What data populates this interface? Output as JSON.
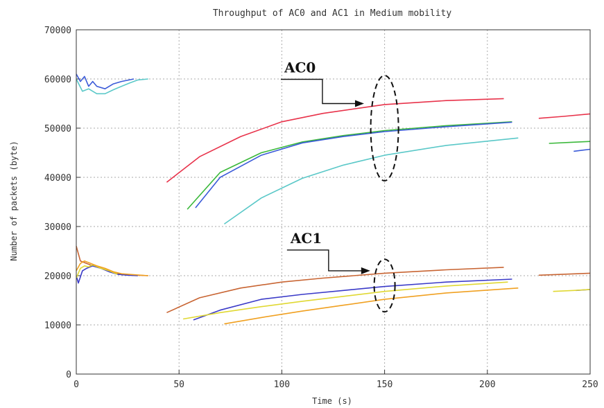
{
  "chart_data": {
    "type": "line",
    "title": "Throughput of AC0 and AC1 in Medium mobility",
    "xlabel": "Time (s)",
    "ylabel": "Number of packets (byte)",
    "xlim": [
      0,
      250
    ],
    "ylim": [
      0,
      70000
    ],
    "xticks": [
      0,
      50,
      100,
      150,
      200,
      250
    ],
    "xtick_labels": [
      "0",
      "50",
      "100",
      "150",
      "200",
      "250"
    ],
    "yticks": [
      0,
      10000,
      20000,
      30000,
      40000,
      50000,
      60000,
      70000
    ],
    "ytick_labels": [
      "0",
      "10000",
      "20000",
      "30000",
      "40000",
      "50000",
      "60000",
      "70000"
    ],
    "grid": true,
    "annotations": [
      {
        "text": "AC0",
        "arrow_to": [
          140,
          55000
        ],
        "ellipse_center": [
          150,
          50000
        ]
      },
      {
        "text": "AC1",
        "arrow_to": [
          143,
          21000
        ],
        "ellipse_center": [
          150,
          18000
        ]
      }
    ],
    "series": [
      {
        "group": "AC0",
        "color": "#e8324a",
        "segments": [
          {
            "x": [
              44,
              60,
              80,
              100,
              120,
              150,
              180,
              208
            ],
            "y": [
              39000,
              44200,
              48300,
              51300,
              53000,
              54800,
              55600,
              56000
            ]
          },
          {
            "x": [
              225,
              237,
              250
            ],
            "y": [
              52000,
              52400,
              52900
            ]
          }
        ]
      },
      {
        "group": "AC0",
        "color": "#3ab83a",
        "segments": [
          {
            "x": [
              54,
              70,
              90,
              110,
              130,
              150,
              180,
              212
            ],
            "y": [
              33500,
              41000,
              45000,
              47200,
              48500,
              49500,
              50500,
              51300
            ]
          },
          {
            "x": [
              230,
              240,
              250
            ],
            "y": [
              46900,
              47100,
              47300
            ]
          }
        ]
      },
      {
        "group": "AC0",
        "color": "#3a5ad8",
        "segments": [
          {
            "x": [
              0,
              2,
              4,
              6,
              8,
              10,
              14,
              18,
              22,
              28
            ],
            "y": [
              61000,
              59500,
              60500,
              58500,
              59500,
              58500,
              58000,
              59000,
              59500,
              60000
            ]
          },
          {
            "x": [
              58,
              70,
              90,
              110,
              130,
              150,
              180,
              212
            ],
            "y": [
              33800,
              40000,
              44500,
              47000,
              48300,
              49300,
              50300,
              51200
            ]
          },
          {
            "x": [
              242,
              246,
              250
            ],
            "y": [
              45300,
              45500,
              45700
            ]
          }
        ]
      },
      {
        "group": "AC0",
        "color": "#5ac8c8",
        "segments": [
          {
            "x": [
              0,
              3,
              6,
              10,
              14,
              18,
              22,
              26,
              30,
              35
            ],
            "y": [
              60000,
              57500,
              58000,
              57000,
              57000,
              57800,
              58500,
              59200,
              59800,
              60000
            ]
          },
          {
            "x": [
              72,
              90,
              110,
              130,
              150,
              180,
              215
            ],
            "y": [
              30500,
              35800,
              39800,
              42500,
              44500,
              46500,
              48000
            ]
          }
        ]
      },
      {
        "group": "AC1",
        "color": "#c86432",
        "segments": [
          {
            "x": [
              0,
              2,
              5,
              8,
              12,
              16,
              20,
              25,
              30,
              35
            ],
            "y": [
              26000,
              23000,
              22500,
              22000,
              21500,
              21000,
              20500,
              20200,
              20100,
              20000
            ]
          },
          {
            "x": [
              44,
              60,
              80,
              100,
              120,
              150,
              180,
              208
            ],
            "y": [
              12500,
              15500,
              17500,
              18700,
              19500,
              20500,
              21200,
              21700
            ]
          },
          {
            "x": [
              225,
              237,
              250
            ],
            "y": [
              20100,
              20300,
              20500
            ]
          }
        ]
      },
      {
        "group": "AC1",
        "color": "#3a3ac8",
        "segments": [
          {
            "x": [
              0,
              1,
              3,
              5,
              8,
              12,
              16,
              20,
              25,
              30
            ],
            "y": [
              20000,
              18500,
              21000,
              21500,
              22000,
              21500,
              20800,
              20300,
              20100,
              20000
            ]
          },
          {
            "x": [
              57,
              70,
              90,
              110,
              130,
              150,
              180,
              212
            ],
            "y": [
              11000,
              13000,
              15200,
              16200,
              17000,
              17800,
              18700,
              19300
            ]
          },
          {
            "x": [
              243,
              250
            ],
            "y": [
              17000,
              17200
            ]
          }
        ]
      },
      {
        "group": "AC1",
        "color": "#e0d832",
        "segments": [
          {
            "x": [
              0,
              2,
              4,
              6,
              8,
              12,
              16,
              20
            ],
            "y": [
              19500,
              21500,
              22000,
              21800,
              22200,
              21500,
              21000,
              20300
            ]
          },
          {
            "x": [
              52,
              70,
              90,
              110,
              130,
              150,
              180,
              210
            ],
            "y": [
              11200,
              12500,
              13700,
              14800,
              15800,
              16800,
              17900,
              18700
            ]
          },
          {
            "x": [
              232,
              242,
              250
            ],
            "y": [
              16800,
              17000,
              17200
            ]
          }
        ]
      },
      {
        "group": "AC1",
        "color": "#f0a020",
        "segments": [
          {
            "x": [
              0,
              2,
              4,
              7,
              10,
              14,
              18,
              22,
              28,
              35
            ],
            "y": [
              21000,
              22500,
              23000,
              22500,
              22000,
              21500,
              20800,
              20400,
              20200,
              20000
            ]
          },
          {
            "x": [
              72,
              90,
              110,
              130,
              150,
              180,
              215
            ],
            "y": [
              10200,
              11500,
              12800,
              14000,
              15200,
              16500,
              17500
            ]
          }
        ]
      }
    ]
  }
}
